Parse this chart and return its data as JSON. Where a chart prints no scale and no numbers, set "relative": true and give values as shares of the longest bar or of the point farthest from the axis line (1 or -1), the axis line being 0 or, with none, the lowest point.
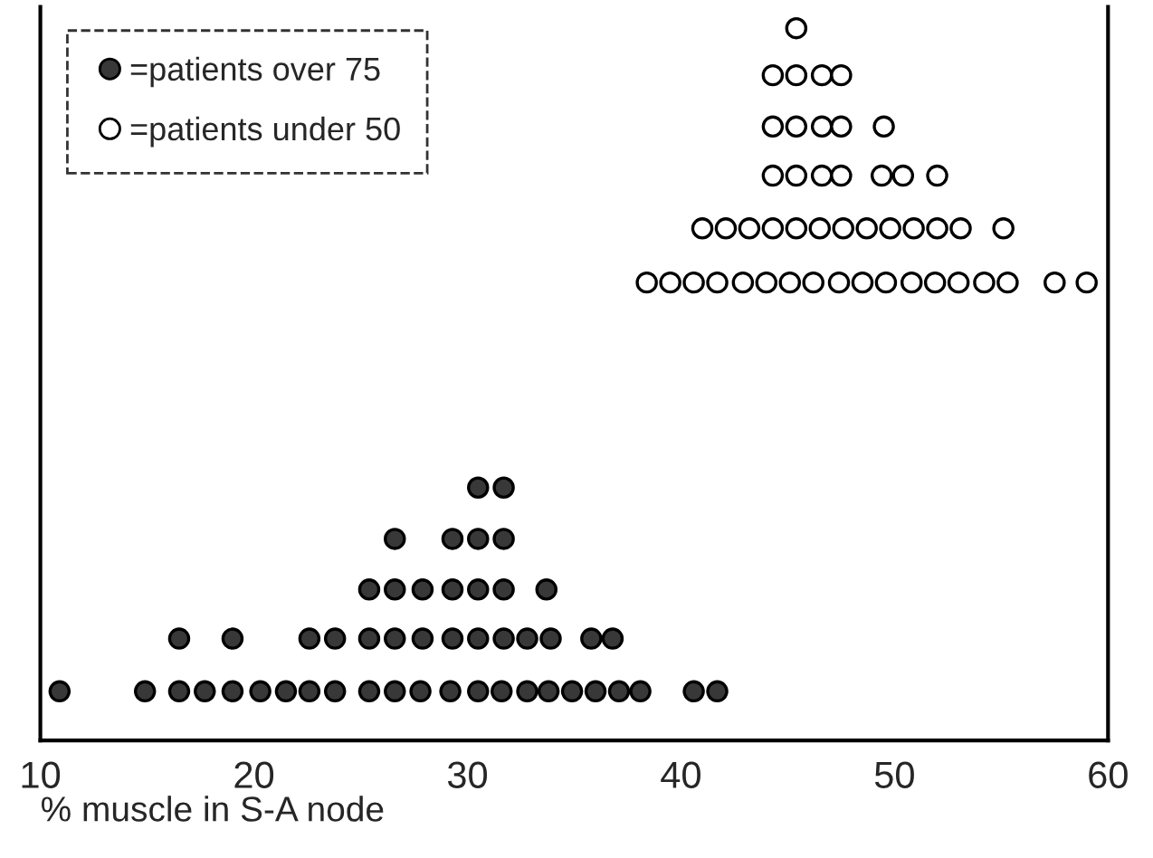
{
  "chart_data": {
    "type": "scatter",
    "xlabel": "% muscle in S-A node",
    "relative": true,
    "xlim": [
      10,
      60
    ],
    "xticks": [
      10,
      20,
      30,
      40,
      50,
      60
    ],
    "grid": false,
    "legend": "top left",
    "marker": "circle",
    "series": [
      {
        "name": "=patients over 75",
        "color": "#383838",
        "x": [
          10.9,
          14.9,
          16.5,
          17.7,
          19.0,
          20.3,
          21.5,
          22.6,
          23.8,
          25.4,
          26.6,
          27.8,
          29.2,
          30.5,
          31.6,
          32.8,
          33.8,
          34.9,
          36.0,
          37.1,
          38.1,
          40.6,
          41.7,
          16.5,
          19.0,
          22.6,
          23.8,
          25.4,
          26.6,
          27.9,
          29.3,
          30.5,
          31.7,
          32.8,
          33.9,
          35.8,
          36.8,
          25.4,
          26.6,
          27.9,
          29.3,
          30.5,
          31.7,
          33.7,
          26.6,
          29.3,
          30.5,
          31.7,
          30.5,
          31.7
        ],
        "values": [
          0.069,
          0.069,
          0.069,
          0.069,
          0.069,
          0.069,
          0.069,
          0.069,
          0.069,
          0.069,
          0.069,
          0.069,
          0.069,
          0.069,
          0.069,
          0.069,
          0.069,
          0.069,
          0.069,
          0.069,
          0.069,
          0.069,
          0.069,
          0.143,
          0.143,
          0.143,
          0.143,
          0.143,
          0.143,
          0.143,
          0.143,
          0.143,
          0.143,
          0.143,
          0.143,
          0.143,
          0.143,
          0.212,
          0.212,
          0.212,
          0.212,
          0.212,
          0.212,
          0.212,
          0.283,
          0.283,
          0.283,
          0.283,
          0.355,
          0.355
        ]
      },
      {
        "name": "=patients under 50",
        "color": "#ffffff",
        "x": [
          38.4,
          39.5,
          40.6,
          41.7,
          42.9,
          44.0,
          45.1,
          46.2,
          47.4,
          48.5,
          49.6,
          50.8,
          51.9,
          53.0,
          54.2,
          55.3,
          57.5,
          59.0,
          41.0,
          42.1,
          43.2,
          44.3,
          45.4,
          46.5,
          47.6,
          48.7,
          49.8,
          50.9,
          52.0,
          53.1,
          55.1,
          44.3,
          45.4,
          46.6,
          47.5,
          49.4,
          50.4,
          52.0,
          44.3,
          45.4,
          46.6,
          47.5,
          49.5,
          44.3,
          45.4,
          46.6,
          47.5,
          45.4
        ],
        "values": [
          0.643,
          0.643,
          0.643,
          0.643,
          0.643,
          0.643,
          0.643,
          0.643,
          0.643,
          0.643,
          0.643,
          0.643,
          0.643,
          0.643,
          0.643,
          0.643,
          0.643,
          0.643,
          0.719,
          0.719,
          0.719,
          0.719,
          0.719,
          0.719,
          0.719,
          0.719,
          0.719,
          0.719,
          0.719,
          0.719,
          0.719,
          0.793,
          0.793,
          0.793,
          0.793,
          0.793,
          0.793,
          0.793,
          0.862,
          0.862,
          0.862,
          0.862,
          0.862,
          0.934,
          0.934,
          0.934,
          0.934,
          1.0
        ]
      }
    ]
  }
}
